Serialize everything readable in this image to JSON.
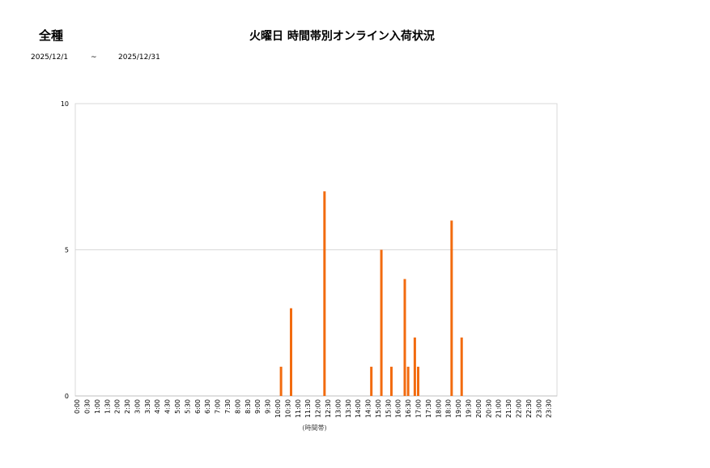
{
  "header": {
    "category": "全種",
    "title": "火曜日 時間帯別オンライン入荷状況",
    "date_from": "2025/12/1",
    "date_sep": "~",
    "date_to": "2025/12/31"
  },
  "chart_data": {
    "type": "bar",
    "title": "火曜日 時間帯別オンライン入荷状況",
    "xlabel": "(時間帯)",
    "ylabel": "",
    "ylim": [
      0,
      10
    ],
    "yticks": [
      0,
      5,
      10
    ],
    "grid": true,
    "slot_minutes": 10,
    "x_tick_labels": [
      "0:00",
      "0:30",
      "1:00",
      "1:30",
      "2:00",
      "2:30",
      "3:00",
      "3:30",
      "4:00",
      "4:30",
      "5:00",
      "5:30",
      "6:00",
      "6:30",
      "7:00",
      "7:30",
      "8:00",
      "8:30",
      "9:00",
      "9:30",
      "10:00",
      "10:30",
      "11:00",
      "11:30",
      "12:00",
      "12:30",
      "13:00",
      "13:30",
      "14:00",
      "14:30",
      "15:00",
      "15:30",
      "16:00",
      "16:30",
      "17:00",
      "17:30",
      "18:00",
      "18:30",
      "19:00",
      "19:30",
      "20:00",
      "20:30",
      "21:00",
      "21:30",
      "22:00",
      "22:30",
      "23:00",
      "23:30"
    ],
    "bars": [
      {
        "x": "10:10",
        "value": 1
      },
      {
        "x": "10:40",
        "value": 3
      },
      {
        "x": "12:20",
        "value": 7
      },
      {
        "x": "14:40",
        "value": 1
      },
      {
        "x": "15:10",
        "value": 5
      },
      {
        "x": "15:40",
        "value": 1
      },
      {
        "x": "16:20",
        "value": 4
      },
      {
        "x": "16:30",
        "value": 1
      },
      {
        "x": "16:50",
        "value": 2
      },
      {
        "x": "17:00",
        "value": 1
      },
      {
        "x": "18:40",
        "value": 6
      },
      {
        "x": "19:10",
        "value": 2
      }
    ],
    "colors": {
      "bar": "#f26b0f",
      "grid": "#d9d9d9",
      "axis": "#bfbfbf"
    }
  }
}
